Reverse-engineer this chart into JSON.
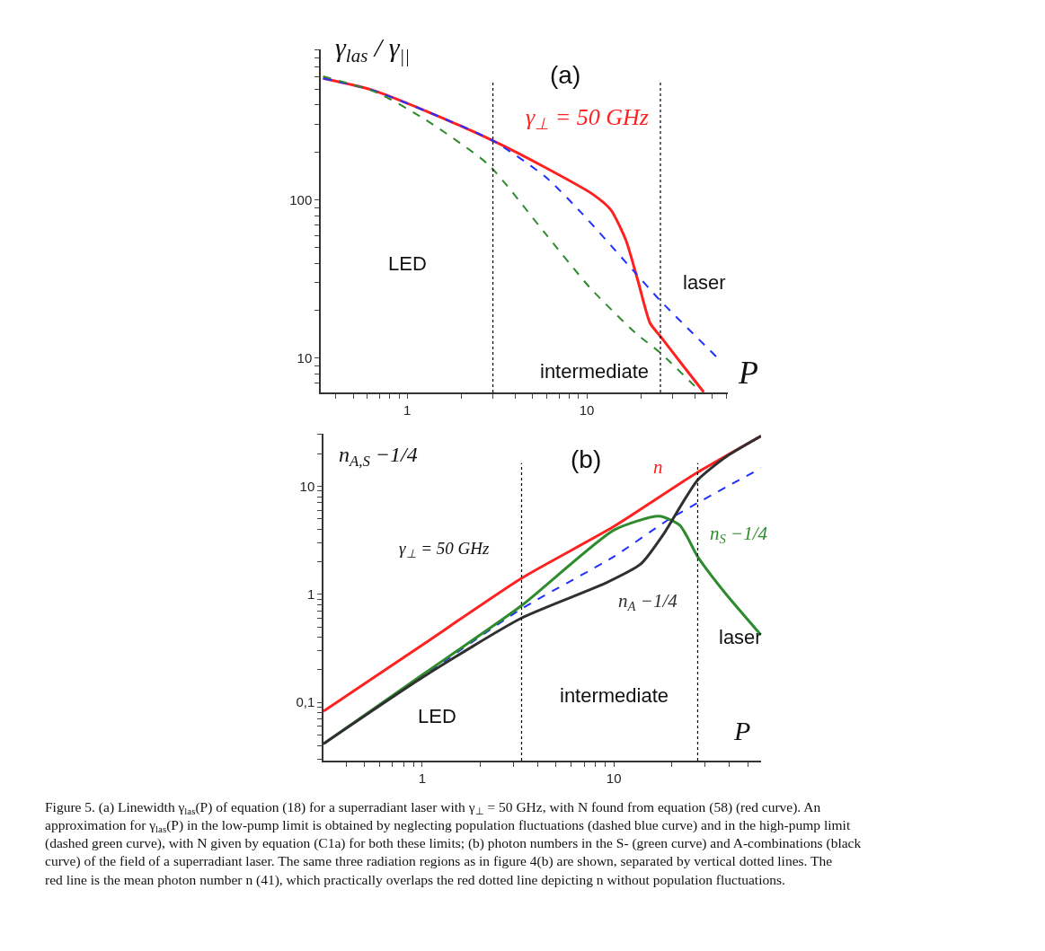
{
  "chart_data": [
    {
      "type": "line",
      "title": "(a)",
      "xlabel": "P",
      "ylabel": "γ$_{las}$ / γ$_{||}$",
      "log": "xy",
      "xlim": [
        0.33,
        61
      ],
      "ylim": [
        6.08,
        900
      ],
      "xticks": [
        {
          "value": 0.4,
          "label": null
        },
        {
          "value": 0.5,
          "label": null
        },
        {
          "value": 0.6,
          "label": null
        },
        {
          "value": 0.7,
          "label": null
        },
        {
          "value": 0.8,
          "label": null
        },
        {
          "value": 0.9,
          "label": null
        },
        1,
        {
          "value": 2,
          "label": null
        },
        {
          "value": 3,
          "label": null
        },
        {
          "value": 4,
          "label": null
        },
        {
          "value": 5,
          "label": null
        },
        {
          "value": 6,
          "label": null
        },
        {
          "value": 7,
          "label": null
        },
        {
          "value": 8,
          "label": null
        },
        {
          "value": 9,
          "label": null
        },
        10,
        {
          "value": 20,
          "label": null
        },
        {
          "value": 30,
          "label": null
        },
        {
          "value": 40,
          "label": null
        },
        {
          "value": 50,
          "label": null
        },
        {
          "value": 60,
          "label": null
        }
      ],
      "yticks": [
        {
          "value": 7,
          "label": null
        },
        {
          "value": 8,
          "label": null
        },
        {
          "value": 9,
          "label": null
        },
        10,
        {
          "value": 20,
          "label": null
        },
        {
          "value": 30,
          "label": null
        },
        {
          "value": 40,
          "label": null
        },
        {
          "value": 50,
          "label": null
        },
        {
          "value": 60,
          "label": null
        },
        {
          "value": 70,
          "label": null
        },
        {
          "value": 80,
          "label": null
        },
        {
          "value": 90,
          "label": null
        },
        100,
        {
          "value": 200,
          "label": null
        },
        {
          "value": 300,
          "label": null
        },
        {
          "value": 400,
          "label": null
        },
        {
          "value": 500,
          "label": null
        },
        {
          "value": 600,
          "label": null
        },
        {
          "value": 700,
          "label": null
        },
        {
          "value": 800,
          "label": null
        },
        {
          "value": 900,
          "label": null
        }
      ],
      "series": [
        {
          "name": "γ$_{⊥}$ = 50 GHz",
          "color": "#ff2020",
          "line_style": "solid",
          "x": [
            0.34,
            0.63,
            1.26,
            3.0,
            5.87,
            10.8,
            13.6,
            16.5,
            19.3,
            22.5,
            26.2,
            34.3,
            44.8
          ],
          "values": [
            590,
            500,
            368,
            238,
            161,
            109,
            87,
            56,
            30.7,
            16.7,
            13.4,
            9.0,
            6.1
          ]
        },
        {
          "color": "#2030ff",
          "line_style": "dashed",
          "x": [
            0.34,
            0.63,
            1.26,
            3.0,
            5.87,
            9.3,
            18.5,
            25.7,
            53.3
          ],
          "values": [
            590,
            500,
            368,
            238,
            141,
            83.6,
            35,
            23.1,
            10.1
          ]
        },
        {
          "color": "#2e8b2e",
          "line_style": "dashed",
          "x": [
            0.34,
            0.68,
            1.26,
            2.83,
            5.87,
            10.4,
            18.5,
            25.7,
            43.2
          ],
          "values": [
            608,
            479,
            324,
            168,
            61.6,
            28,
            14.6,
            10.8,
            6.1
          ]
        }
      ],
      "ref_lines": [
        {
          "axis": "x",
          "value": 3.0,
          "color": "#000000",
          "line_style": "dotted"
        },
        {
          "axis": "x",
          "value": 25.7,
          "color": "#000000",
          "line_style": "dotted"
        }
      ],
      "annotations": [
        "LED",
        "laser",
        "intermediate"
      ]
    },
    {
      "type": "line",
      "title": "(b)",
      "xlabel": "P",
      "ylabel": "n$_{A,S}$ −1/4",
      "log": "xy",
      "xlim": [
        0.305,
        58.7
      ],
      "ylim": [
        0.029,
        30.5
      ],
      "xticks": [
        {
          "value": 0.4,
          "label": null
        },
        {
          "value": 0.5,
          "label": null
        },
        {
          "value": 0.6,
          "label": null
        },
        {
          "value": 0.7,
          "label": null
        },
        {
          "value": 0.8,
          "label": null
        },
        {
          "value": 0.9,
          "label": null
        },
        1,
        {
          "value": 2,
          "label": null
        },
        {
          "value": 3,
          "label": null
        },
        {
          "value": 4,
          "label": null
        },
        {
          "value": 5,
          "label": null
        },
        {
          "value": 6,
          "label": null
        },
        {
          "value": 7,
          "label": null
        },
        {
          "value": 8,
          "label": null
        },
        {
          "value": 9,
          "label": null
        },
        10,
        {
          "value": 20,
          "label": null
        },
        {
          "value": 30,
          "label": null
        },
        {
          "value": 40,
          "label": null
        },
        {
          "value": 50,
          "label": null
        }
      ],
      "yticks": [
        {
          "value": 0.03,
          "label": null
        },
        {
          "value": 0.04,
          "label": null
        },
        {
          "value": 0.05,
          "label": null
        },
        {
          "value": 0.06,
          "label": null
        },
        {
          "value": 0.07,
          "label": null
        },
        {
          "value": 0.08,
          "label": null
        },
        {
          "value": 0.09,
          "label": null
        },
        {
          "value": 0.1,
          "label": "0,1"
        },
        {
          "value": 0.2,
          "label": null
        },
        {
          "value": 0.3,
          "label": null
        },
        {
          "value": 0.4,
          "label": null
        },
        {
          "value": 0.5,
          "label": null
        },
        {
          "value": 0.6,
          "label": null
        },
        {
          "value": 0.7,
          "label": null
        },
        {
          "value": 0.8,
          "label": null
        },
        {
          "value": 0.9,
          "label": null
        },
        1,
        {
          "value": 2,
          "label": null
        },
        {
          "value": 3,
          "label": null
        },
        {
          "value": 4,
          "label": null
        },
        {
          "value": 5,
          "label": null
        },
        {
          "value": 6,
          "label": null
        },
        {
          "value": 7,
          "label": null
        },
        {
          "value": 8,
          "label": null
        },
        {
          "value": 9,
          "label": null
        },
        10,
        {
          "value": 20,
          "label": null
        },
        {
          "value": 30,
          "label": null
        }
      ],
      "series": [
        {
          "name": "n",
          "color": "#ff2020",
          "line_style": "solid",
          "x": [
            0.305,
            1,
            3.28,
            10,
            26.4,
            58.7
          ],
          "values": [
            0.083,
            0.34,
            1.4,
            4.23,
            12.9,
            29
          ]
        },
        {
          "color": "#2030ff",
          "line_style": "dashed",
          "x": [
            0.305,
            1,
            3.28,
            10,
            19.5,
            58.7
          ],
          "values": [
            0.0415,
            0.174,
            0.73,
            2.23,
            4.96,
            14.7
          ]
        },
        {
          "name": "n$_{S}$ −1/4",
          "color": "#2e8b2e",
          "line_style": "solid",
          "x": [
            0.305,
            1,
            3.28,
            10,
            17.2,
            22.1,
            27.4,
            37.9,
            58.7
          ],
          "values": [
            0.0415,
            0.18,
            0.78,
            3.92,
            5.28,
            4.36,
            2.23,
            1.04,
            0.42
          ]
        },
        {
          "name": "n$_{A}$ −1/4",
          "color": "#303030",
          "line_style": "solid",
          "x": [
            0.305,
            1,
            3.28,
            8.98,
            13.8,
            18.4,
            22.9,
            27.4,
            37.9,
            58.7
          ],
          "values": [
            0.0415,
            0.17,
            0.6,
            1.26,
            1.9,
            3.72,
            7.05,
            11.4,
            18.3,
            29
          ]
        }
      ],
      "ref_lines": [
        {
          "axis": "x",
          "value": 3.3,
          "color": "#000000",
          "line_style": "dotted"
        },
        {
          "axis": "x",
          "value": 27.4,
          "color": "#000000",
          "line_style": "dotted"
        }
      ],
      "annotations": [
        "γ$_{⊥}$ = 50 GHz",
        "LED",
        "intermediate",
        "laser",
        "Figure 5. (a) Linewidth γ$_{las}$(P) of equation (18) for a superradiant laser with γ$_{⊥}$ = 50 GHz, with N found from equation (58) (red curve). An approximation for γ$_{las}$(P) in the low-pump limit is obtained by neglecting population fluctuations (dashed blue curve) and in the high-pump limit (dashed green curve), with N given by equation (C1a) for both these limits; (b) photon numbers in the S- (green curve) and A-combinations (black curve) of the field of a superradiant laser. The same three radiation regions as in figure 4(b) are shown, separated by vertical dotted lines. The red line is the mean photon number n (41), which practically overlaps the red dotted line depicting n without population fluctuations."
      ]
    }
  ]
}
